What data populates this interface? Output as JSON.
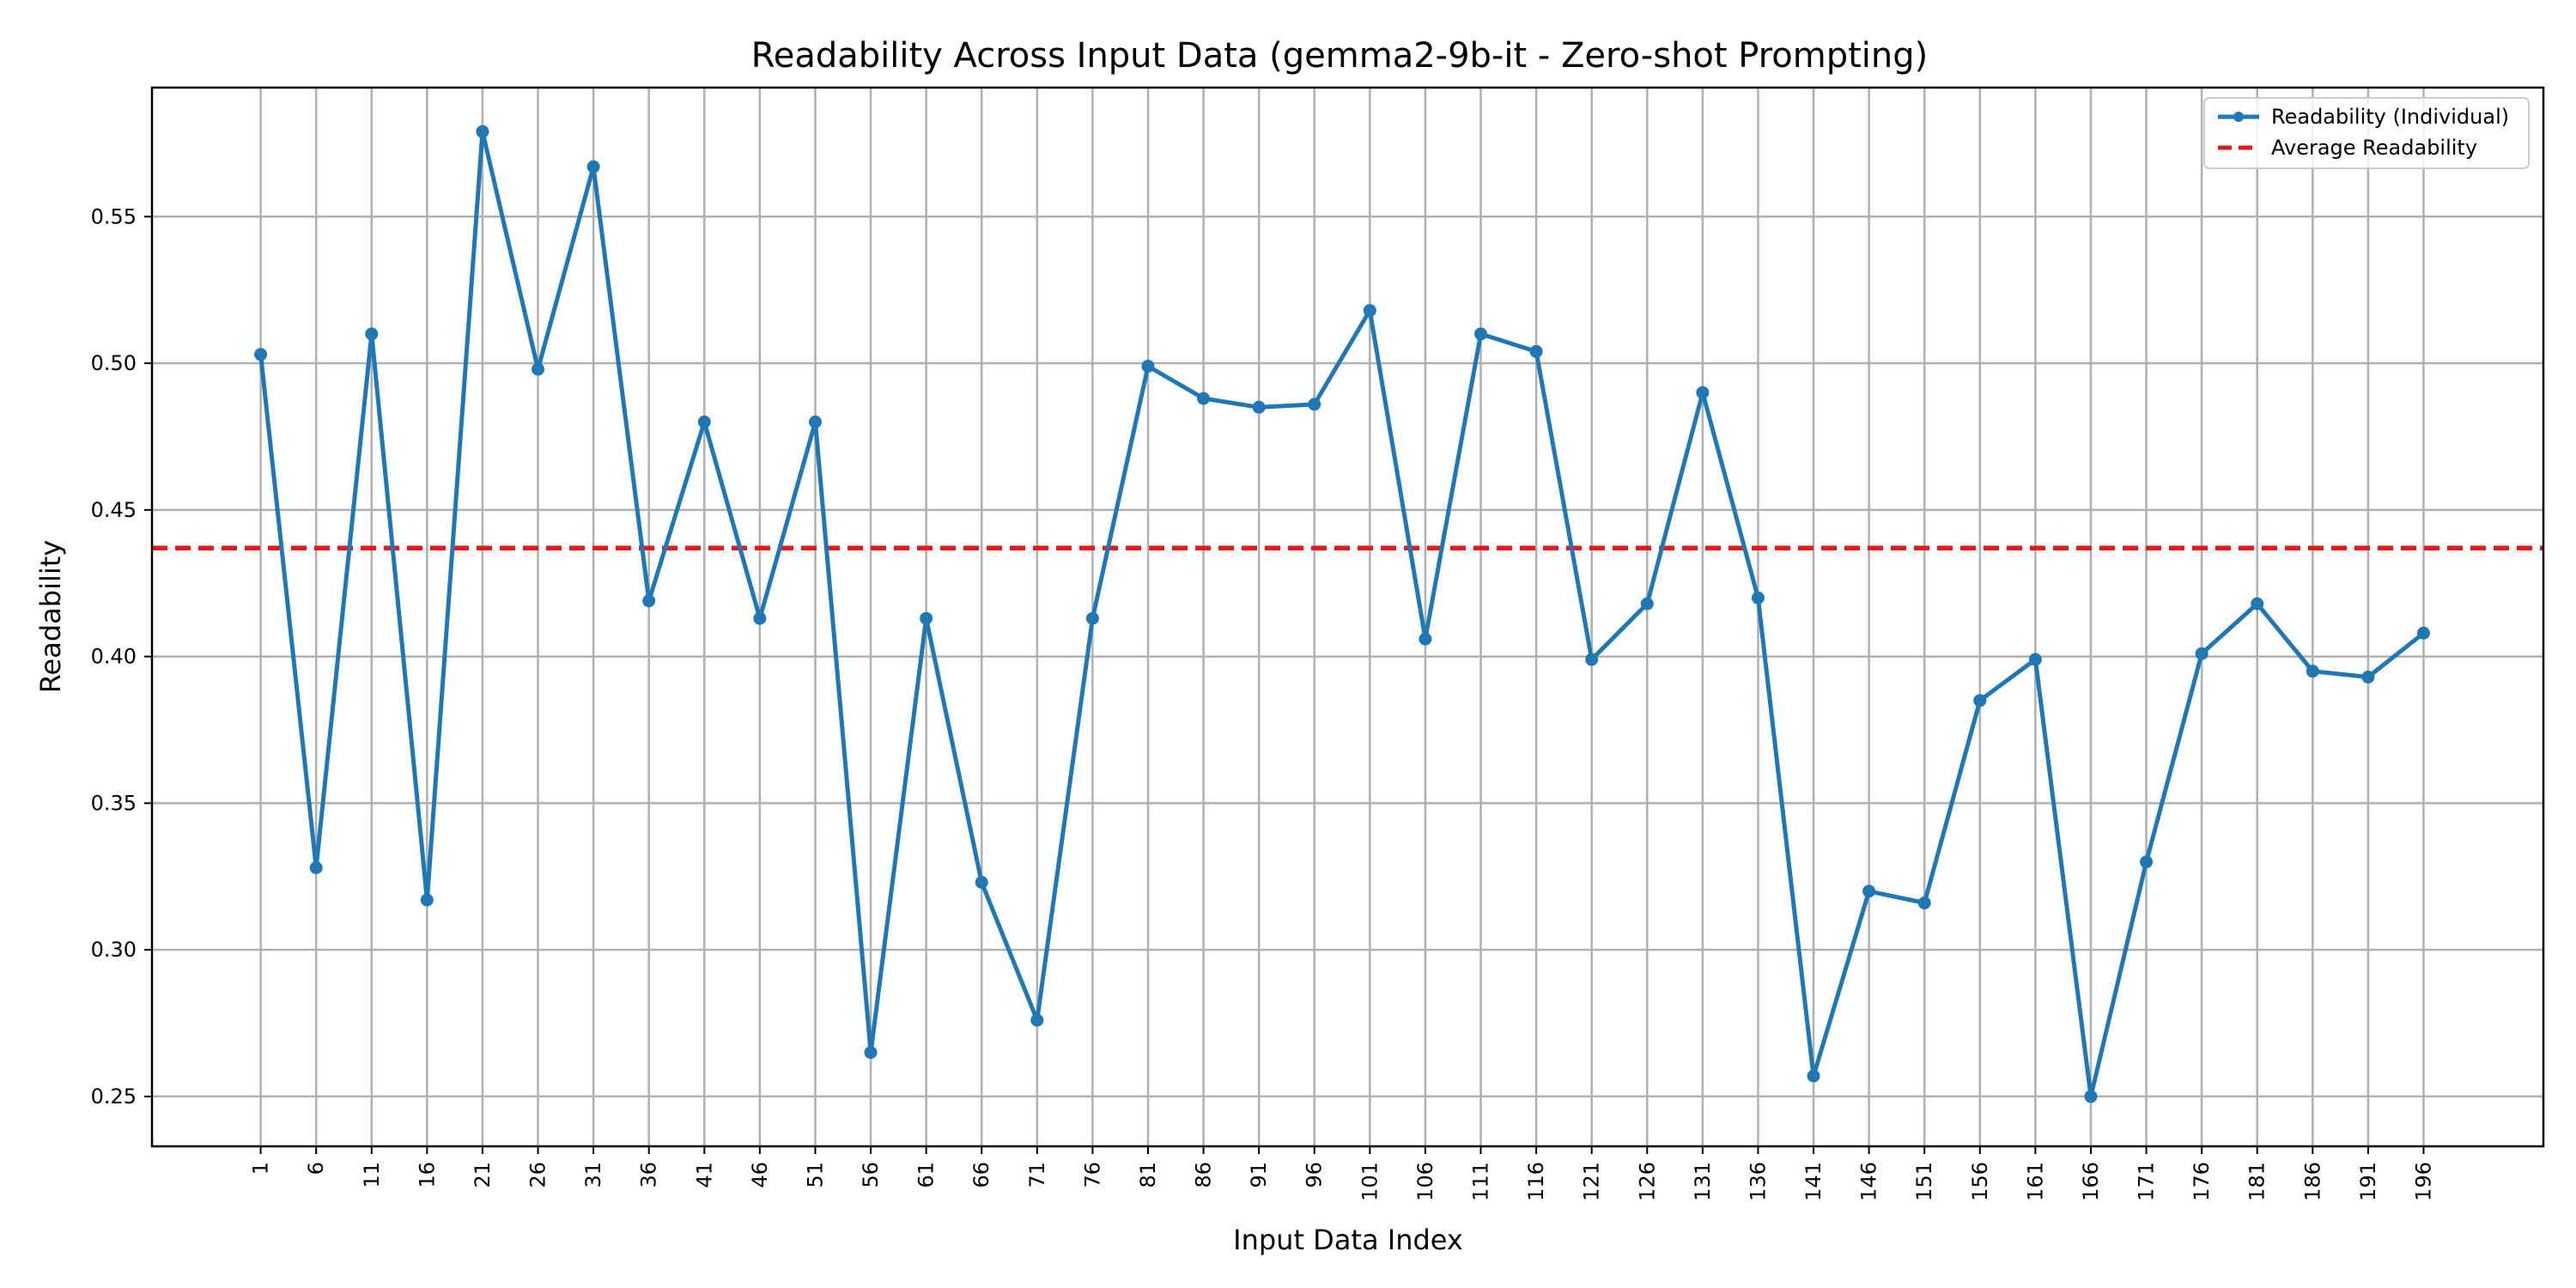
{
  "chart_data": {
    "type": "line",
    "title": "Readability Across Input Data (gemma2-9b-it - Zero-shot Prompting)",
    "xlabel": "Input Data Index",
    "ylabel": "Readability",
    "x": [
      1,
      6,
      11,
      16,
      21,
      26,
      31,
      36,
      41,
      46,
      51,
      56,
      61,
      66,
      71,
      76,
      81,
      86,
      91,
      96,
      101,
      106,
      111,
      116,
      121,
      126,
      131,
      136,
      141,
      146,
      151,
      156,
      161,
      166,
      171,
      176,
      181,
      186,
      191,
      196
    ],
    "xticks": [
      "1",
      "6",
      "11",
      "16",
      "21",
      "26",
      "31",
      "36",
      "41",
      "46",
      "51",
      "56",
      "61",
      "66",
      "71",
      "76",
      "81",
      "86",
      "91",
      "96",
      "101",
      "106",
      "111",
      "116",
      "121",
      "126",
      "131",
      "136",
      "141",
      "146",
      "151",
      "156",
      "161",
      "166",
      "171",
      "176",
      "181",
      "186",
      "191",
      "196"
    ],
    "xlim": [
      -8.8,
      206.8
    ],
    "ylim": [
      0.233,
      0.594
    ],
    "yticks": [
      0.25,
      0.3,
      0.35,
      0.4,
      0.45,
      0.5,
      0.55
    ],
    "ytick_labels": [
      "0.25",
      "0.30",
      "0.35",
      "0.40",
      "0.45",
      "0.50",
      "0.55"
    ],
    "grid": true,
    "legend_position": "top-right",
    "series": [
      {
        "name": "Readability (Individual)",
        "color": "#1f77b4",
        "style": "solid-with-markers",
        "values": [
          0.503,
          0.328,
          0.51,
          0.317,
          0.579,
          0.498,
          0.567,
          0.419,
          0.48,
          0.413,
          0.48,
          0.265,
          0.413,
          0.323,
          0.276,
          0.413,
          0.499,
          0.488,
          0.485,
          0.486,
          0.518,
          0.406,
          0.51,
          0.504,
          0.399,
          0.418,
          0.49,
          0.42,
          0.257,
          0.32,
          0.316,
          0.385,
          0.399,
          0.25,
          0.33,
          0.401,
          0.418,
          0.395,
          0.393,
          0.408
        ]
      },
      {
        "name": "Average Readability",
        "color": "#e31a1c",
        "style": "dashed",
        "value": 0.437
      }
    ]
  }
}
